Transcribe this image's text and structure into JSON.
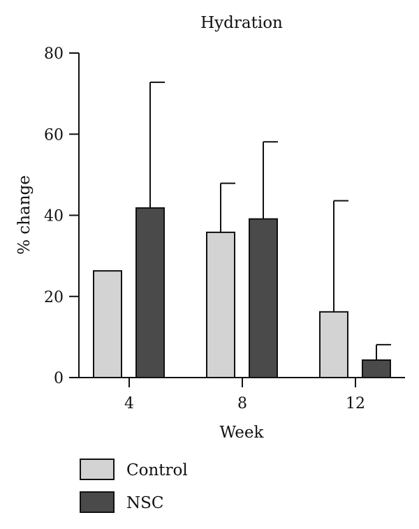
{
  "chart_data": {
    "type": "bar",
    "title": "Hydration",
    "xlabel": "Week",
    "ylabel": "% change",
    "categories": [
      "4",
      "8",
      "12"
    ],
    "ylim": [
      0,
      80
    ],
    "yticks": [
      0,
      20,
      40,
      60,
      80
    ],
    "grid": false,
    "legend_position": "bottom-left",
    "series": [
      {
        "name": "Control",
        "color": "#d3d3d3",
        "values": [
          26.3,
          35.8,
          16.2
        ],
        "error_plus": [
          0.0,
          12.1,
          27.4
        ]
      },
      {
        "name": "NSC",
        "color": "#4a4a4a",
        "values": [
          41.8,
          39.1,
          4.3
        ],
        "error_plus": [
          31.0,
          19.0,
          3.8
        ]
      }
    ]
  }
}
